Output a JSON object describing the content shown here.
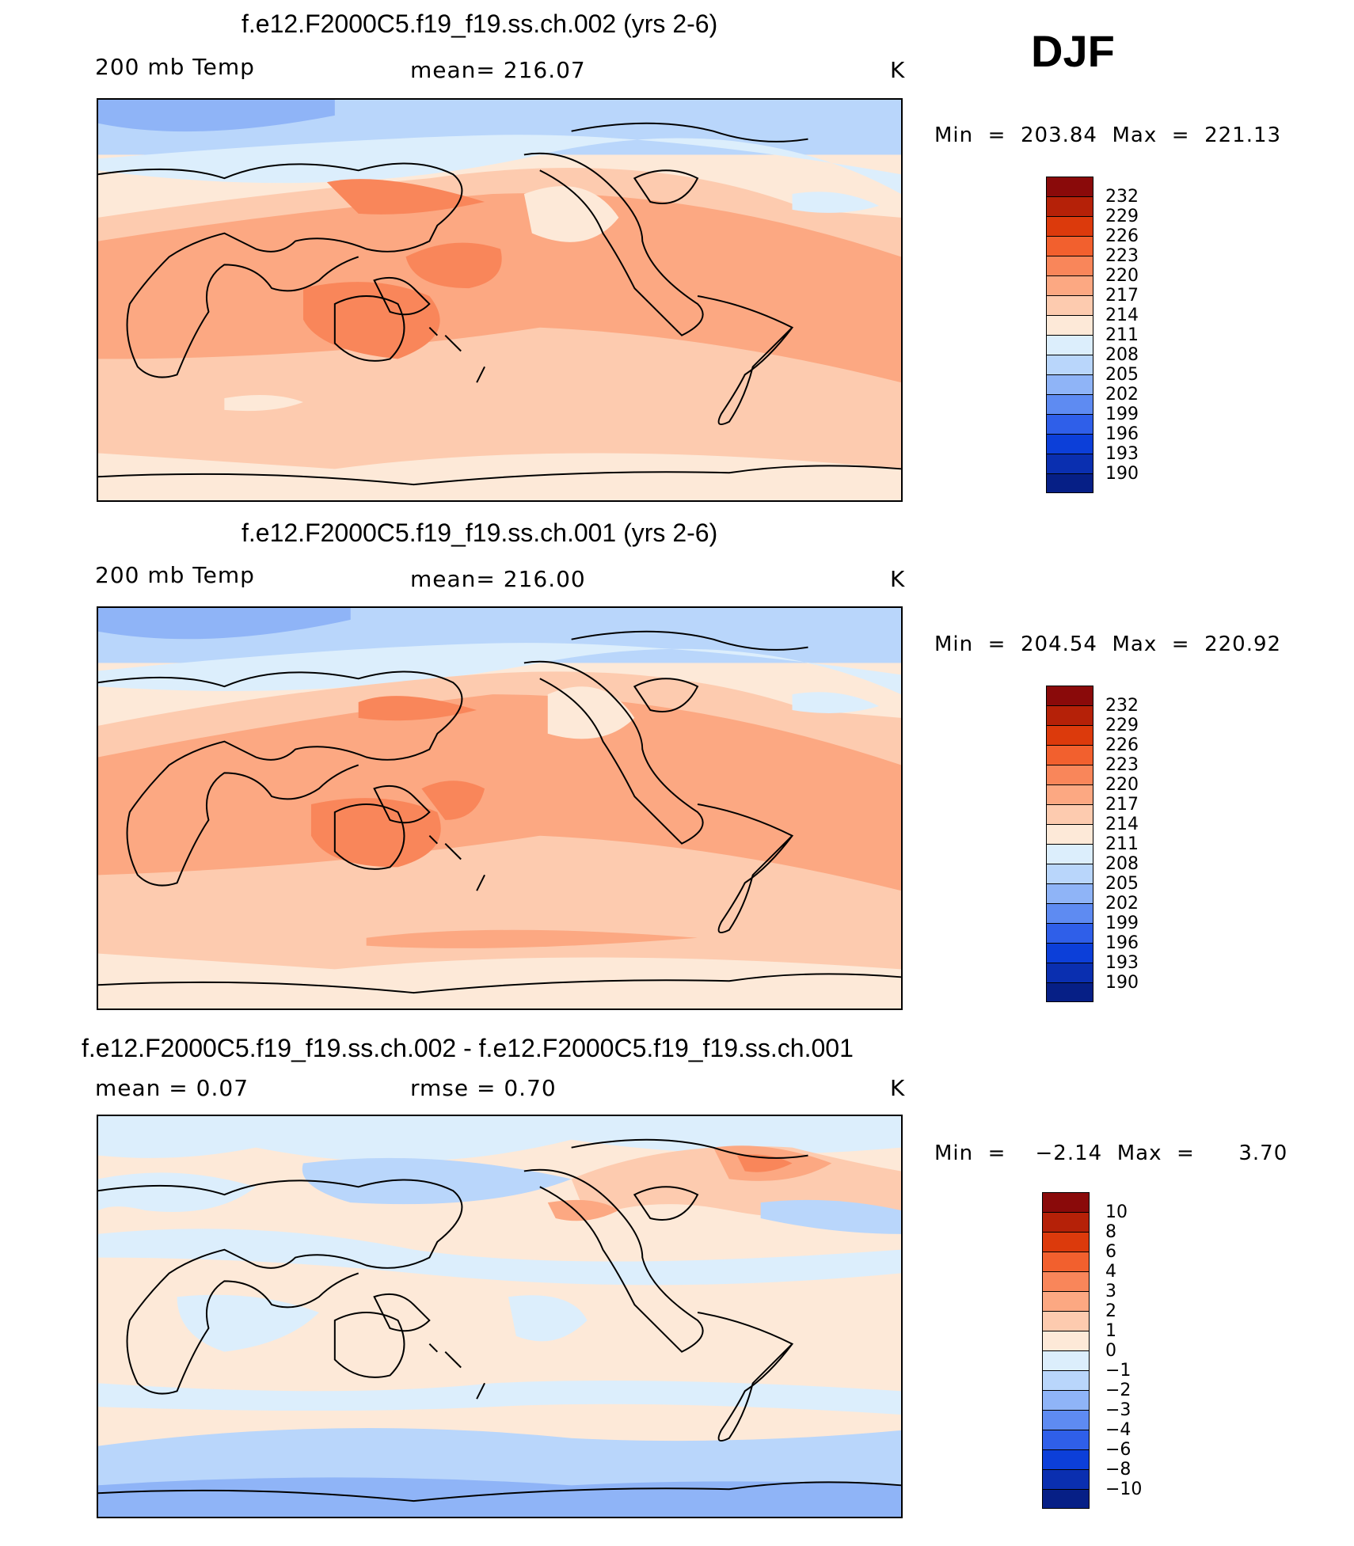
{
  "season": "DJF",
  "panels": [
    {
      "title": "f.e12.F2000C5.f19_f19.ss.ch.002 (yrs 2-6)",
      "left_label": "200 mb Temp",
      "center_label": "mean=  216.07",
      "units": "K",
      "minmax": "Min  =  203.84  Max  =  221.13",
      "colorbar_labels": [
        "232",
        "229",
        "226",
        "223",
        "220",
        "217",
        "214",
        "211",
        "208",
        "205",
        "202",
        "199",
        "196",
        "193",
        "190"
      ]
    },
    {
      "title": "f.e12.F2000C5.f19_f19.ss.ch.001 (yrs 2-6)",
      "left_label": "200 mb Temp",
      "center_label": "mean=  216.00",
      "units": "K",
      "minmax": "Min  =  204.54  Max  =  220.92",
      "colorbar_labels": [
        "232",
        "229",
        "226",
        "223",
        "220",
        "217",
        "214",
        "211",
        "208",
        "205",
        "202",
        "199",
        "196",
        "193",
        "190"
      ]
    },
    {
      "title": "f.e12.F2000C5.f19_f19.ss.ch.002 - f.e12.F2000C5.f19_f19.ss.ch.001",
      "left_label": "mean  =     0.07",
      "center_label": "rmse  =     0.70",
      "units": "K",
      "minmax": "Min  =    −2.14  Max  =      3.70",
      "colorbar_labels": [
        "10",
        "8",
        "6",
        "4",
        "3",
        "2",
        "1",
        "0",
        "−1",
        "−2",
        "−3",
        "−4",
        "−6",
        "−8",
        "−10"
      ]
    }
  ],
  "colorbar_colors": [
    "#8a0a0a",
    "#b52108",
    "#dc3a0c",
    "#f2602e",
    "#f9865a",
    "#fca882",
    "#fdcbaf",
    "#fde9d8",
    "#dceefc",
    "#b9d6fb",
    "#8fb4f7",
    "#5e8bf2",
    "#2f5fe9",
    "#0c3fd9",
    "#0a2fb0",
    "#061f86"
  ],
  "colorbar_colors_diff": [
    "#8a0a0a",
    "#b52108",
    "#dc3a0c",
    "#f2602e",
    "#f9865a",
    "#fca882",
    "#fdcbaf",
    "#fde9d8",
    "#dceefc",
    "#b9d6fb",
    "#8fb4f7",
    "#5e8bf2",
    "#2f5fe9",
    "#0c3fd9",
    "#0a2fb0",
    "#061f86"
  ]
}
